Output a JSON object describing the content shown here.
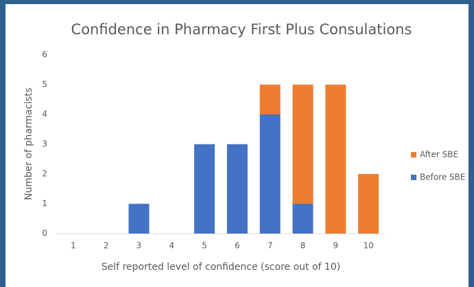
{
  "chart_data": {
    "type": "stacked_bar",
    "title": "Confidence in Pharmacy First Plus Consulations",
    "x_label": "Self reported level of confidence (score out of 10)",
    "y_label": "Number of pharmacists",
    "categories": [
      "1",
      "2",
      "3",
      "4",
      "5",
      "6",
      "7",
      "8",
      "9",
      "10"
    ],
    "series": [
      {
        "name": "Before SBE",
        "color": "#4472c4",
        "values": [
          0,
          0,
          1,
          0,
          3,
          3,
          4,
          1,
          0,
          0
        ]
      },
      {
        "name": "After SBE",
        "color": "#ed7d31",
        "values": [
          0,
          0,
          0,
          0,
          0,
          0,
          1,
          4,
          5,
          2
        ]
      }
    ],
    "ylim": [
      0,
      6
    ],
    "yticks": [
      0,
      1,
      2,
      3,
      4,
      5,
      6
    ],
    "grid": false,
    "legend": "right"
  }
}
